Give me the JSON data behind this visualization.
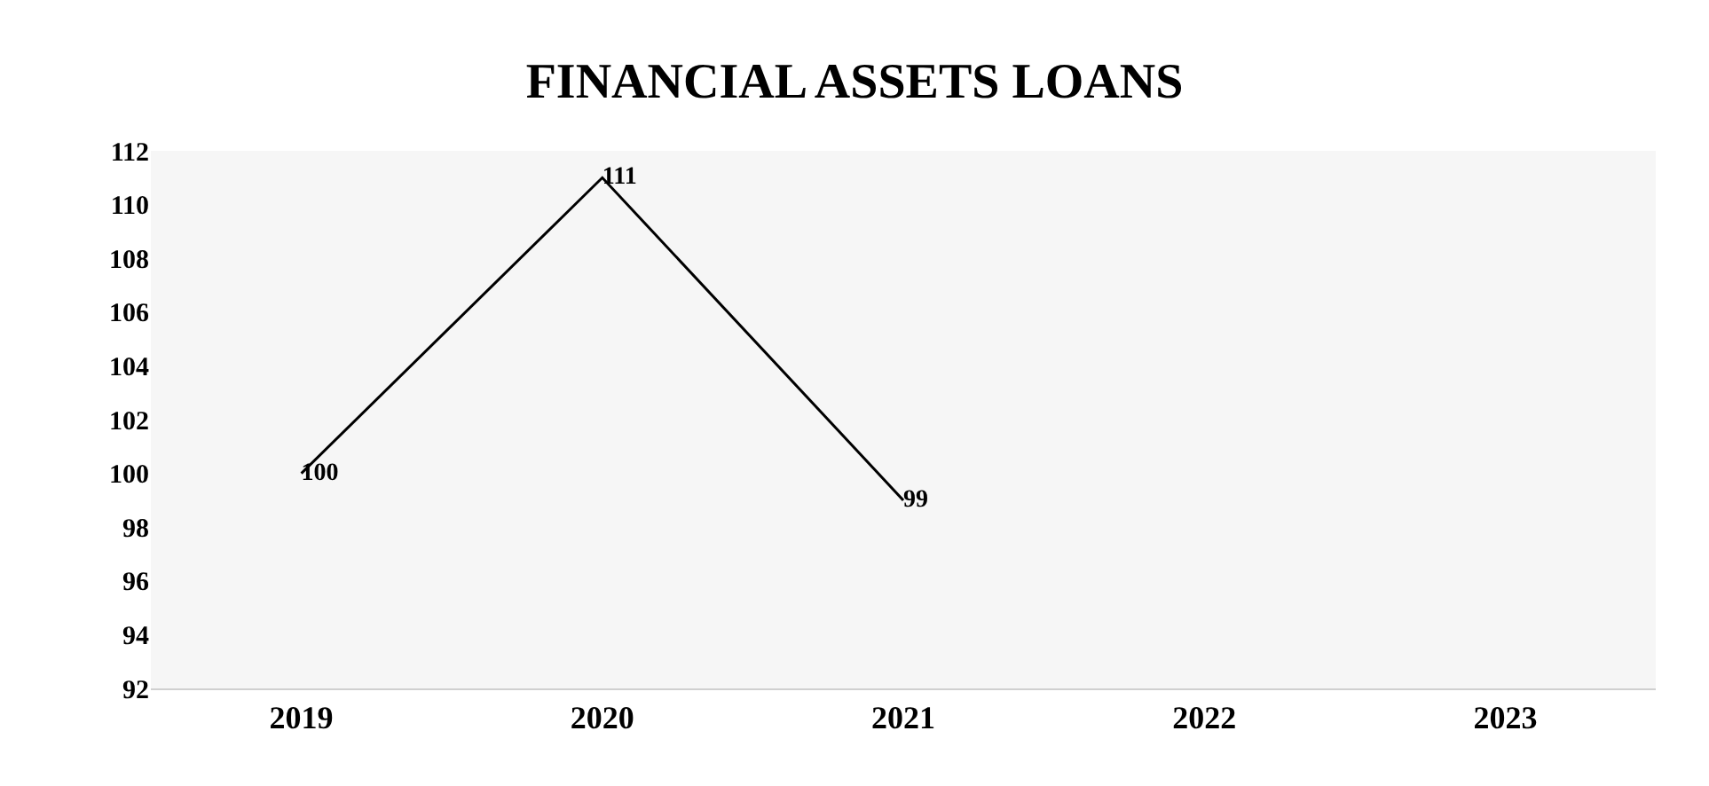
{
  "chart_data": {
    "type": "line",
    "title": "FINANCIAL ASSETS LOANS",
    "categories": [
      "2019",
      "2020",
      "2021",
      "2022",
      "2023"
    ],
    "series": [
      {
        "color": "#000000",
        "values": [
          100,
          111,
          99,
          null,
          null
        ]
      }
    ],
    "ylim": [
      92,
      112
    ],
    "yticks": [
      92,
      94,
      96,
      98,
      100,
      102,
      104,
      106,
      108,
      110,
      112
    ],
    "data_labels": true,
    "grid": false,
    "marker": "none",
    "line_style": "solid"
  }
}
